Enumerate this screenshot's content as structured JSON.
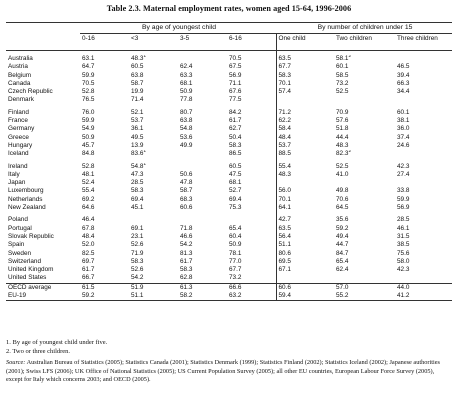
{
  "title": "Table 2.3. Maternal employment rates, women aged 15-64, 1996-2006",
  "group_headers": {
    "age": "By age of youngest child",
    "children": "By number of children under 15"
  },
  "columns": {
    "age_0_16": "0-16",
    "age_lt3": "<3",
    "age_3_5": "3-5",
    "age_6_16": "6-16",
    "one_child": "One child",
    "two_children": "Two children",
    "three_children": "Three children"
  },
  "rows": [
    {
      "country": "Australia",
      "v": [
        "63.1",
        "48.3",
        "",
        "70.5",
        "63.5",
        "58.1",
        ""
      ],
      "sup": [
        null,
        "1",
        null,
        null,
        null,
        "2",
        null
      ]
    },
    {
      "country": "Austria",
      "v": [
        "64.7",
        "60.5",
        "62.4",
        "67.5",
        "67.7",
        "60.1",
        "46.5"
      ],
      "sup": []
    },
    {
      "country": "Belgium",
      "v": [
        "59.9",
        "63.8",
        "63.3",
        "56.9",
        "58.3",
        "58.5",
        "39.4"
      ],
      "sup": []
    },
    {
      "country": "Canada",
      "v": [
        "70.5",
        "58.7",
        "68.1",
        "71.1",
        "70.1",
        "73.2",
        "66.3"
      ],
      "sup": []
    },
    {
      "country": "Czech Republic",
      "v": [
        "52.8",
        "19.9",
        "50.9",
        "67.6",
        "57.4",
        "52.5",
        "34.4"
      ],
      "sup": []
    },
    {
      "country": "Denmark",
      "v": [
        "76.5",
        "71.4",
        "77.8",
        "77.5",
        "",
        "",
        ""
      ],
      "sup": []
    },
    {
      "country": "Finland",
      "v": [
        "76.0",
        "52.1",
        "80.7",
        "84.2",
        "71.2",
        "70.9",
        "60.1"
      ],
      "sup": []
    },
    {
      "country": "France",
      "v": [
        "59.9",
        "53.7",
        "63.8",
        "61.7",
        "62.2",
        "57.6",
        "38.1"
      ],
      "sup": []
    },
    {
      "country": "Germany",
      "v": [
        "54.9",
        "36.1",
        "54.8",
        "62.7",
        "58.4",
        "51.8",
        "36.0"
      ],
      "sup": []
    },
    {
      "country": "Greece",
      "v": [
        "50.9",
        "49.5",
        "53.6",
        "50.4",
        "48.4",
        "44.4",
        "37.4"
      ],
      "sup": []
    },
    {
      "country": "Hungary",
      "v": [
        "45.7",
        "13.9",
        "49.9",
        "58.3",
        "53.7",
        "48.3",
        "24.6"
      ],
      "sup": []
    },
    {
      "country": "Iceland",
      "v": [
        "84.8",
        "83.6",
        "",
        "86.5",
        "88.5",
        "82.3",
        ""
      ],
      "sup": [
        null,
        "1",
        null,
        null,
        null,
        "2",
        null
      ]
    },
    {
      "country": "Ireland",
      "v": [
        "52.8",
        "54.8",
        "",
        "60.5",
        "55.4",
        "52.5",
        "42.3"
      ],
      "sup": [
        null,
        "1",
        null,
        null,
        null,
        null,
        null
      ]
    },
    {
      "country": "Italy",
      "v": [
        "48.1",
        "47.3",
        "50.6",
        "47.5",
        "48.3",
        "41.0",
        "27.4"
      ],
      "sup": []
    },
    {
      "country": "Japan",
      "v": [
        "52.4",
        "28.5",
        "47.8",
        "68.1",
        "",
        "",
        ""
      ],
      "sup": []
    },
    {
      "country": "Luxembourg",
      "v": [
        "55.4",
        "58.3",
        "58.7",
        "52.7",
        "56.0",
        "49.8",
        "33.8"
      ],
      "sup": []
    },
    {
      "country": "Netherlands",
      "v": [
        "69.2",
        "69.4",
        "68.3",
        "69.4",
        "70.1",
        "70.6",
        "59.9"
      ],
      "sup": []
    },
    {
      "country": "New Zealand",
      "v": [
        "64.6",
        "45.1",
        "60.6",
        "75.3",
        "64.1",
        "64.5",
        "56.9"
      ],
      "sup": []
    },
    {
      "country": "Poland",
      "v": [
        "46.4",
        "",
        "",
        "",
        "42.7",
        "35.6",
        "28.5"
      ],
      "sup": []
    },
    {
      "country": "Portugal",
      "v": [
        "67.8",
        "69.1",
        "71.8",
        "65.4",
        "63.5",
        "59.2",
        "46.1"
      ],
      "sup": []
    },
    {
      "country": "Slovak Republic",
      "v": [
        "48.4",
        "23.1",
        "46.6",
        "60.4",
        "56.4",
        "49.4",
        "31.5"
      ],
      "sup": []
    },
    {
      "country": "Spain",
      "v": [
        "52.0",
        "52.6",
        "54.2",
        "50.9",
        "51.1",
        "44.7",
        "38.5"
      ],
      "sup": []
    },
    {
      "country": "Sweden",
      "v": [
        "82.5",
        "71.9",
        "81.3",
        "78.1",
        "80.6",
        "84.7",
        "75.6"
      ],
      "sup": []
    },
    {
      "country": "Switzerland",
      "v": [
        "69.7",
        "58.3",
        "61.7",
        "77.0",
        "69.5",
        "65.4",
        "58.0"
      ],
      "sup": []
    },
    {
      "country": "United Kingdom",
      "v": [
        "61.7",
        "52.6",
        "58.3",
        "67.7",
        "67.1",
        "62.4",
        "42.3"
      ],
      "sup": []
    },
    {
      "country": "United States",
      "v": [
        "66.7",
        "54.2",
        "62.8",
        "73.2",
        "",
        "",
        ""
      ],
      "sup": []
    }
  ],
  "summary_rows": [
    {
      "country": "OECD average",
      "v": [
        "61.5",
        "51.9",
        "61.3",
        "66.6",
        "60.6",
        "57.0",
        "44.0"
      ],
      "sup": []
    },
    {
      "country": "EU-19",
      "v": [
        "59.2",
        "51.1",
        "58.2",
        "63.2",
        "59.4",
        "55.2",
        "41.2"
      ],
      "sup": []
    }
  ],
  "notes": {
    "note1": "1. By age of youngest child under five.",
    "note2": "2. Two or three children.",
    "source_label": "Source:",
    "source_text": "Australian Bureau of Statistics (2005); Statistics Canada (2001); Statistics Denmark (1999); Statistics Finland (2002); Statistics Iceland (2002); Japanese authorities (2001); Swiss LFS (2006); UK Office of National Statistics (2005); US Current Population Survey (2005); all other EU countries, European Labour Force Survey (2005), except for Italy which concerns 2003; and OECD (2005)."
  }
}
